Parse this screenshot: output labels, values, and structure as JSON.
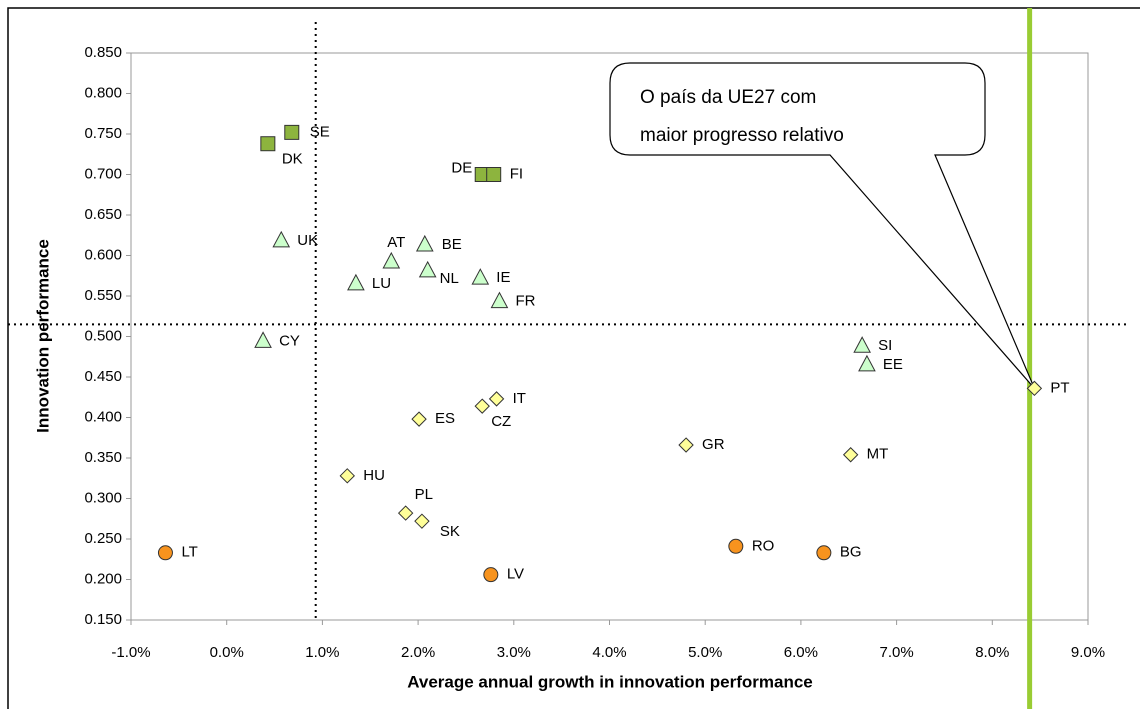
{
  "chart_data": {
    "type": "scatter",
    "xlabel": "Average annual growth in innovation performance",
    "ylabel": "Innovation performance",
    "xlim": [
      -1,
      9
    ],
    "ylim": [
      0.15,
      0.85
    ],
    "xticks": [
      {
        "value": -1,
        "label": "-1.0%"
      },
      {
        "value": 0,
        "label": "0.0%"
      },
      {
        "value": 1,
        "label": "1.0%"
      },
      {
        "value": 2,
        "label": "2.0%"
      },
      {
        "value": 3,
        "label": "3.0%"
      },
      {
        "value": 4,
        "label": "4.0%"
      },
      {
        "value": 5,
        "label": "5.0%"
      },
      {
        "value": 6,
        "label": "6.0%"
      },
      {
        "value": 7,
        "label": "7.0%"
      },
      {
        "value": 8,
        "label": "8.0%"
      },
      {
        "value": 9,
        "label": "9.0%"
      }
    ],
    "yticks": [
      {
        "value": 0.15,
        "label": "0.150"
      },
      {
        "value": 0.2,
        "label": "0.200"
      },
      {
        "value": 0.25,
        "label": "0.250"
      },
      {
        "value": 0.3,
        "label": "0.300"
      },
      {
        "value": 0.35,
        "label": "0.350"
      },
      {
        "value": 0.4,
        "label": "0.400"
      },
      {
        "value": 0.45,
        "label": "0.450"
      },
      {
        "value": 0.5,
        "label": "0.500"
      },
      {
        "value": 0.55,
        "label": "0.550"
      },
      {
        "value": 0.6,
        "label": "0.600"
      },
      {
        "value": 0.65,
        "label": "0.650"
      },
      {
        "value": 0.7,
        "label": "0.700"
      },
      {
        "value": 0.75,
        "label": "0.750"
      },
      {
        "value": 0.8,
        "label": "0.800"
      },
      {
        "value": 0.85,
        "label": "0.850"
      }
    ],
    "reference_lines": {
      "x": 0.93,
      "y": 0.515
    },
    "highlight_x": {
      "value": 8.39,
      "color": "#99cc33"
    },
    "annotation": {
      "lines": [
        "O país da UE27 com",
        "maior progresso relativo"
      ]
    },
    "series": [
      {
        "marker": "square",
        "color": "#8db43e",
        "labels": [
          "SE",
          "DK",
          "DE",
          "FI"
        ],
        "x": [
          0.68,
          0.43,
          2.67,
          2.79
        ],
        "values": [
          0.752,
          0.738,
          0.7,
          0.7
        ]
      },
      {
        "marker": "triangle",
        "color": "#ccffcc",
        "labels": [
          "UK",
          "AT",
          "BE",
          "LU",
          "NL",
          "IE",
          "FR",
          "CY",
          "SI",
          "EE"
        ],
        "x": [
          0.57,
          1.72,
          2.07,
          1.35,
          2.1,
          2.65,
          2.85,
          0.38,
          6.64,
          6.69
        ],
        "values": [
          0.618,
          0.592,
          0.613,
          0.565,
          0.581,
          0.572,
          0.543,
          0.494,
          0.488,
          0.465
        ]
      },
      {
        "marker": "diamond",
        "color": "#ffff99",
        "labels": [
          "PT",
          "IT",
          "CZ",
          "ES",
          "GR",
          "MT",
          "HU",
          "PL",
          "SK"
        ],
        "x": [
          8.44,
          2.82,
          2.67,
          2.01,
          4.8,
          6.52,
          1.26,
          1.87,
          2.04
        ],
        "values": [
          0.436,
          0.423,
          0.414,
          0.398,
          0.366,
          0.354,
          0.328,
          0.282,
          0.272
        ]
      },
      {
        "marker": "circle",
        "color": "#f7931e",
        "labels": [
          "LT",
          "RO",
          "BG",
          "LV"
        ],
        "x": [
          -0.64,
          5.32,
          6.24,
          2.76
        ],
        "values": [
          0.233,
          0.241,
          0.233,
          0.206
        ]
      }
    ]
  }
}
